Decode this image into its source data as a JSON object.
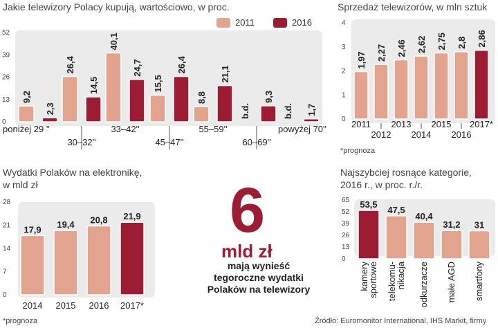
{
  "colors": {
    "c2011": "#e2a48e",
    "c2016": "#9c1c33",
    "panel": "#ebebeb"
  },
  "legend": {
    "y2011": "2011",
    "y2016": "2016"
  },
  "chart_data": [
    {
      "id": "tv_size",
      "type": "bar",
      "title": "Jakie telewizory Polacy kupują, wartościowo, w proc.",
      "categories": [
        "poniżej 29 ''",
        "30–32''",
        "33–42''",
        "45–47''",
        "55–59''",
        "60–69''",
        "powyżej 70''"
      ],
      "series": [
        {
          "name": "2011",
          "values": [
            9.2,
            26.4,
            40.1,
            15.5,
            8.8,
            null,
            null
          ],
          "labels": [
            "9,2",
            "26,4",
            "40,1",
            "15,5",
            "8,8",
            "b.d.",
            "b.d."
          ]
        },
        {
          "name": "2016",
          "values": [
            2.3,
            14.5,
            24.7,
            26.4,
            21.1,
            9.3,
            1.7
          ],
          "labels": [
            "2,3",
            "14,5",
            "24,7",
            "26,4",
            "21,1",
            "9,3",
            "1,7"
          ]
        }
      ],
      "yticks": [
        "0",
        "13",
        "26",
        "39",
        "52"
      ],
      "ylim": [
        0,
        52
      ]
    },
    {
      "id": "tv_sales",
      "type": "bar",
      "title": "Sprzedaż telewizorów, w mln sztuk",
      "categories": [
        "2011",
        "2012",
        "2013",
        "2014",
        "2015",
        "2016",
        "2017*"
      ],
      "values": [
        1.97,
        2.27,
        2.46,
        2.62,
        2.75,
        2.8,
        2.86
      ],
      "labels": [
        "1,97",
        "2,27",
        "2,46",
        "2,62",
        "2,75",
        "2,8",
        "2,86"
      ],
      "yticks": [
        "0",
        "1",
        "2",
        "3",
        "4"
      ],
      "ylim": [
        0,
        4
      ],
      "note": "*prognoza"
    },
    {
      "id": "electronics",
      "type": "bar",
      "title": "Wydatki Polaków na elektronikę,\nw mld zł",
      "categories": [
        "2014",
        "2015",
        "2016",
        "2017*"
      ],
      "values": [
        17.9,
        19.4,
        20.8,
        21.9
      ],
      "labels": [
        "17,9",
        "19,4",
        "20,8",
        "21,9"
      ],
      "yticks": [
        "0",
        "7",
        "14",
        "21",
        "28"
      ],
      "ylim": [
        0,
        28
      ],
      "note": "*prognoza"
    },
    {
      "id": "growth",
      "type": "bar",
      "title": "Najszybciej rosnące kategorie,\n2016 r., w proc. r./r.",
      "categories": [
        "kamery\nsportowe",
        "telekomu-\nnikacja",
        "odkurzacze",
        "małe AGD",
        "smartfony"
      ],
      "values": [
        53.5,
        47.5,
        40.4,
        31.2,
        31
      ],
      "labels": [
        "53,5",
        "47,5",
        "40,4",
        "31,2",
        "31"
      ],
      "yticks": [
        "0",
        "13",
        "26",
        "39",
        "52",
        "65"
      ],
      "ylim": [
        0,
        65
      ]
    }
  ],
  "highlight": {
    "number": "6",
    "unit": "mld zł",
    "text": "mają wynieść\ntegoroczne wydatki\nPolaków na telewizory"
  },
  "source": "Źródło: Euromonitor International, IHS Markit, firmy"
}
